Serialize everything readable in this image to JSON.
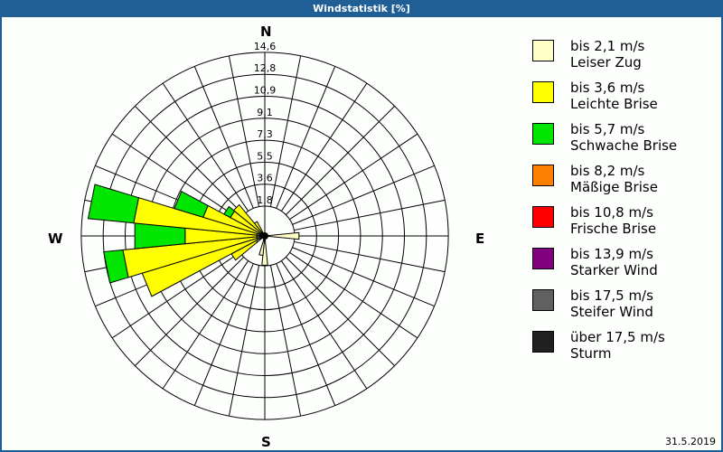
{
  "window": {
    "title": "Windstatistik [%]"
  },
  "compass": {
    "north": "N",
    "east": "E",
    "south": "S",
    "west": "W"
  },
  "date": "31.5.2019",
  "legend": [
    {
      "speed": "bis 2,1 m/s",
      "name": "Leiser Zug",
      "color": "#ffffc8"
    },
    {
      "speed": "bis 3,6 m/s",
      "name": "Leichte Brise",
      "color": "#ffff00"
    },
    {
      "speed": "bis 5,7 m/s",
      "name": "Schwache Brise",
      "color": "#00e600"
    },
    {
      "speed": "bis 8,2 m/s",
      "name": "Mäßige Brise",
      "color": "#ff8000"
    },
    {
      "speed": "bis 10,8 m/s",
      "name": "Frische Brise",
      "color": "#ff0000"
    },
    {
      "speed": "bis 13,9 m/s",
      "name": "Starker Wind",
      "color": "#800080"
    },
    {
      "speed": "bis 17,5 m/s",
      "name": "Steifer Wind",
      "color": "#606060"
    },
    {
      "speed": "über 17,5 m/s",
      "name": "Sturm",
      "color": "#202020"
    }
  ],
  "chart_data": {
    "type": "wind-rose",
    "title": "Windstatistik [%]",
    "unit": "%",
    "ring_labels": [
      "1,8",
      "3,6",
      "5,5",
      "7,3",
      "9,1",
      "10,9",
      "12,8",
      "14,6"
    ],
    "rmax": 14.6,
    "sector_width_deg": 11.25,
    "series_names": [
      "bis 2,1 m/s",
      "bis 3,6 m/s",
      "bis 5,7 m/s"
    ],
    "sectors": [
      {
        "dir_deg": 90,
        "values": [
          2.2,
          0,
          0
        ]
      },
      {
        "dir_deg": 180,
        "values": [
          1.8,
          0,
          0
        ]
      },
      {
        "dir_deg": 191,
        "values": [
          1.2,
          0,
          0
        ]
      },
      {
        "dir_deg": 236,
        "values": [
          0.6,
          1.9,
          0
        ]
      },
      {
        "dir_deg": 247.5,
        "values": [
          0.5,
          9.5,
          0
        ]
      },
      {
        "dir_deg": 258.75,
        "values": [
          0.5,
          10.7,
          1.6
        ]
      },
      {
        "dir_deg": 270,
        "values": [
          0.5,
          5.5,
          4.2
        ]
      },
      {
        "dir_deg": 281.25,
        "values": [
          0.5,
          9.8,
          3.8
        ]
      },
      {
        "dir_deg": 292.5,
        "values": [
          0.4,
          4.3,
          2.5
        ]
      },
      {
        "dir_deg": 303.75,
        "values": [
          0.3,
          2.3,
          0.6
        ]
      },
      {
        "dir_deg": 315,
        "values": [
          0.2,
          2.5,
          0
        ]
      },
      {
        "dir_deg": 326.25,
        "values": [
          0.2,
          0.8,
          0
        ]
      }
    ]
  }
}
